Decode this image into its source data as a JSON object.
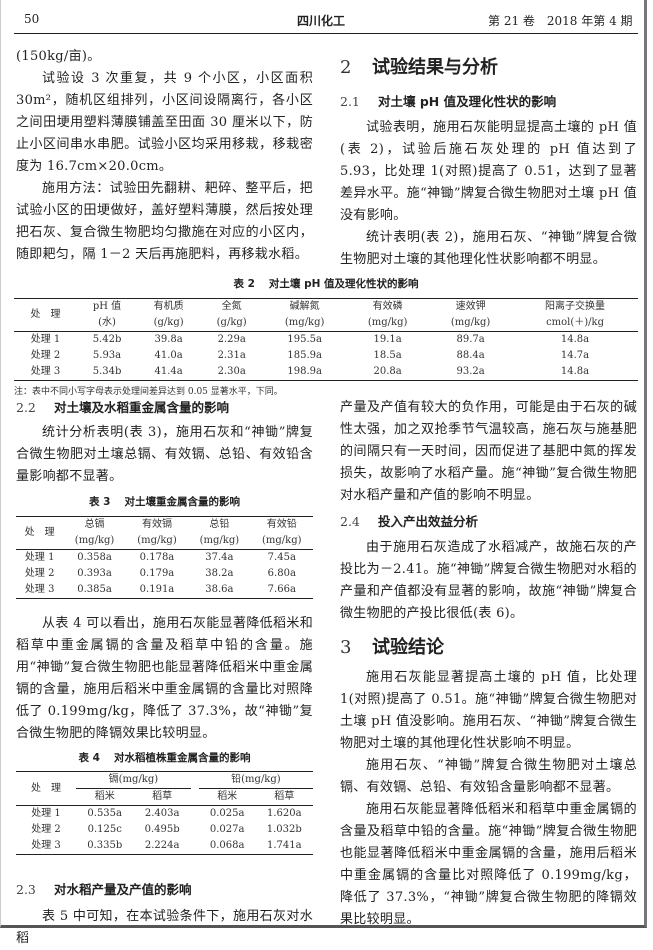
{
  "header": {
    "page_number": "50",
    "journal": "四川化工",
    "issue": "第 21 卷　2018 年第 4 期"
  },
  "left": {
    "p0": "(150kg/亩)。",
    "p1": "试验设 3 次重复，共 9 个小区，小区面积 30m²，随机区组排列，小区间设隔离行，各小区之间田埂用塑料薄膜铺盖至田面 30 厘米以下，防止小区间串水串肥。试验小区均采用移栽，移栽密度为 16.7cm×20.0cm。",
    "p2": "施用方法：试验田先翻耕、耙碎、整平后，把试验小区的田埂做好，盖好塑料薄膜，然后按处理把石灰、复合微生物肥均匀撒施在对应的小区内，随即耙匀，隔 1－2 天后再施肥料，再移栽水稻。",
    "s22_num": "2.2",
    "s22_title": "对土壤及水稻重金属含量的影响",
    "p3": "统计分析表明(表 3)，施用石灰和“神锄”牌复合微生物肥对土壤总镉、有效镉、总铅、有效铅含量影响都不显著。",
    "p4": "从表 4 可以看出，施用石灰能显著降低稻米和稻草中重金属镉的含量及稻草中铅的含量。施用“神锄”复合微生物肥也能显著降低稻米中重金属镉的含量，施用后稻米中重金属镉的含量比对照降低了 0.199mg/kg，降低了 37.3%，故“神锄”复合微生物肥的降镉效果比较明显。",
    "s23_num": "2.3",
    "s23_title": "对水稻产量及产值的影响",
    "p5": "表 5 中可知，在本试验条件下，施用石灰对水稻"
  },
  "right": {
    "s2_num": "2",
    "s2_title": "试验结果与分析",
    "s21_num": "2.1",
    "s21_title": "对土壤 pH 值及理化性状的影响",
    "p1": "试验表明，施用石灰能明显提高土壤的 pH 值(表 2)，试验后施石灰处理的 pH 值达到了 5.93，比处理 1(对照)提高了 0.51，达到了显著差异水平。施“神锄”牌复合微生物肥对土壤 pH 值没有影响。",
    "p2": "统计表明(表 2)，施用石灰、“神锄”牌复合微生物肥对土壤的其他理化性状影响都不明显。",
    "p3": "产量及产值有较大的负作用，可能是由于石灰的碱性太强，加之双抢季节气温较高，施石灰与施基肥的间隔只有一天时间，因而促进了基肥中氮的挥发损失，故影响了水稻产量。施“神锄”复合微生物肥对水稻产量和产值的影响不明显。",
    "s24_num": "2.4",
    "s24_title": "投入产出效益分析",
    "p4": "由于施用石灰造成了水稻减产，故施石灰的产投比为－2.41。施“神锄”牌复合微生物肥对水稻的产量和产值都没有显著的影响，故施“神锄”牌复合微生物肥的产投比很低(表 6)。",
    "s3_num": "3",
    "s3_title": "试验结论",
    "p5": "施用石灰能显著提高土壤的 pH 值，比处理 1(对照)提高了 0.51。施“神锄”牌复合微生物肥对土壤 pH 值没影响。施用石灰、“神锄”牌复合微生物肥对土壤的其他理化性状影响不明显。",
    "p6": "施用石灰、“神锄”牌复合微生物肥对土壤总镉、有效镉、总铅、有效铅含量影响都不显著。",
    "p7": "施用石灰能显著降低稻米和稻草中重金属镉的含量及稻草中铅的含量。施“神锄”牌复合微生物肥也能显著降低稻米中重金属镉的含量，施用后稻米中重金属镉的含量比对照降低了 0.199mg/kg，降低了 37.3%，“神锄”牌复合微生物肥的降镉效果比较明显。"
  },
  "table2": {
    "num": "表 2",
    "title": "对土壤 pH 值及理化性状的影响",
    "headers": [
      [
        "处　理",
        ""
      ],
      [
        "pH 值",
        "(水)"
      ],
      [
        "有机质",
        "(g/kg)"
      ],
      [
        "全氮",
        "(g/kg)"
      ],
      [
        "碱解氮",
        "(mg/kg)"
      ],
      [
        "有效磷",
        "(mg/kg)"
      ],
      [
        "速效钾",
        "(mg/kg)"
      ],
      [
        "阳离子交换量",
        "cmol(＋)/kg"
      ]
    ],
    "rows": [
      [
        "处理 1",
        "5.42b",
        "39.8a",
        "2.29a",
        "195.5a",
        "19.1a",
        "89.7a",
        "14.8a"
      ],
      [
        "处理 2",
        "5.93a",
        "41.0a",
        "2.31a",
        "185.9a",
        "18.5a",
        "88.4a",
        "14.7a"
      ],
      [
        "处理 3",
        "5.34b",
        "41.4a",
        "2.30a",
        "198.9a",
        "20.8a",
        "93.2a",
        "14.8a"
      ]
    ],
    "note": "注：表中不同小写字母表示处理间差异达到 0.05 显著水平，下同。"
  },
  "table3": {
    "num": "表 3",
    "title": "对土壤重金属含量的影响",
    "headers": [
      [
        "处　理",
        ""
      ],
      [
        "总镉",
        "(mg/kg)"
      ],
      [
        "有效镉",
        "(mg/kg)"
      ],
      [
        "总铅",
        "(mg/kg)"
      ],
      [
        "有效铅",
        "(mg/kg)"
      ]
    ],
    "rows": [
      [
        "处理 1",
        "0.358a",
        "0.178a",
        "37.4a",
        "7.45a"
      ],
      [
        "处理 2",
        "0.393a",
        "0.179a",
        "38.2a",
        "6.80a"
      ],
      [
        "处理 3",
        "0.385a",
        "0.191a",
        "38.6a",
        "7.66a"
      ]
    ]
  },
  "table4": {
    "num": "表 4",
    "title": "对水稻植株重金属含量的影响",
    "row_header": "处　理",
    "groups": [
      "镉(mg/kg)",
      "铅(mg/kg)"
    ],
    "subheaders": [
      "稻米",
      "稻草",
      "稻米",
      "稻草"
    ],
    "rows": [
      [
        "处理 1",
        "0.535a",
        "2.403a",
        "0.025a",
        "1.620a"
      ],
      [
        "处理 2",
        "0.125c",
        "0.495b",
        "0.027a",
        "1.032b"
      ],
      [
        "处理 3",
        "0.335b",
        "2.224a",
        "0.068a",
        "1.741a"
      ]
    ]
  }
}
